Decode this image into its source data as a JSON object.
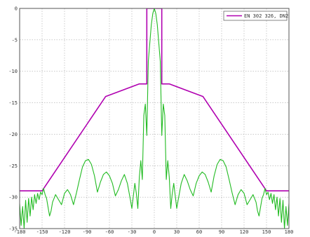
{
  "chart_data": {
    "type": "line",
    "title": "",
    "xlabel": "",
    "ylabel": "",
    "xlim": [
      -180,
      180
    ],
    "ylim": [
      -35,
      0
    ],
    "grid": true,
    "legend_position": "top-right",
    "x_ticks": [
      -180,
      -150,
      -120,
      -90,
      -60,
      -30,
      0,
      30,
      60,
      90,
      120,
      150,
      180
    ],
    "y_ticks": [
      0,
      -5,
      -10,
      -15,
      -20,
      -25,
      -30,
      -35
    ],
    "series": [
      {
        "name": "EN 302 326, DN2",
        "color": "#b000b0",
        "x": [
          -180,
          -150,
          -65,
          -20,
          -10,
          -10,
          10,
          10,
          20,
          65,
          150,
          180
        ],
        "y": [
          -29,
          -29,
          -14,
          -12,
          -12,
          0,
          0,
          -12,
          -12,
          -14,
          -29,
          -29
        ]
      },
      {
        "name": "",
        "color": "#22bb22",
        "x": [
          -180,
          -178,
          -176,
          -174,
          -172,
          -170,
          -168,
          -166,
          -164,
          -162,
          -160,
          -158,
          -156,
          -154,
          -152,
          -150,
          -148,
          -146,
          -144,
          -142,
          -140,
          -138,
          -136,
          -132,
          -128,
          -124,
          -120,
          -116,
          -112,
          -108,
          -104,
          -100,
          -96,
          -92,
          -88,
          -84,
          -80,
          -76,
          -72,
          -68,
          -64,
          -60,
          -56,
          -52,
          -48,
          -44,
          -40,
          -36,
          -32,
          -30,
          -28,
          -26,
          -24,
          -22,
          -20,
          -18,
          -16,
          -14,
          -12,
          -10,
          -8,
          -6,
          -4,
          -2,
          0,
          2,
          4,
          6,
          8,
          10,
          12,
          14,
          16,
          18,
          20,
          22,
          24,
          26,
          28,
          30,
          32,
          36,
          40,
          44,
          48,
          52,
          56,
          60,
          64,
          68,
          72,
          76,
          80,
          84,
          88,
          92,
          96,
          100,
          104,
          108,
          112,
          116,
          120,
          124,
          128,
          132,
          136,
          138,
          140,
          142,
          144,
          146,
          148,
          150,
          152,
          154,
          156,
          158,
          160,
          162,
          164,
          166,
          168,
          170,
          172,
          174,
          176,
          178,
          180
        ],
        "y": [
          -31,
          -34.5,
          -31.5,
          -35,
          -30.5,
          -34,
          -30.2,
          -33,
          -30,
          -32,
          -29.6,
          -31,
          -29.4,
          -30.4,
          -29.2,
          -29.6,
          -28.6,
          -29.6,
          -30.2,
          -31.6,
          -33,
          -32.2,
          -30.8,
          -29.6,
          -30.4,
          -31.2,
          -29.4,
          -28.8,
          -29.6,
          -31.2,
          -29.3,
          -27.2,
          -25.2,
          -24.2,
          -24,
          -24.8,
          -26.6,
          -29.2,
          -27.6,
          -26.4,
          -26,
          -26.6,
          -27.8,
          -29.8,
          -28.8,
          -27.4,
          -26.4,
          -27.8,
          -30.4,
          -31.8,
          -29.8,
          -27.8,
          -29.4,
          -31.8,
          -26.8,
          -24.2,
          -27.2,
          -17,
          -15.2,
          -20.2,
          -8.4,
          -5.5,
          -2.6,
          -0.8,
          0,
          -0.8,
          -2.6,
          -5.5,
          -8.4,
          -20.2,
          -15.2,
          -17,
          -27.2,
          -24.2,
          -26.8,
          -31.8,
          -29.4,
          -27.8,
          -29.8,
          -31.8,
          -30.4,
          -27.8,
          -26.4,
          -27.4,
          -28.8,
          -29.8,
          -27.8,
          -26.6,
          -26,
          -26.4,
          -27.6,
          -29.2,
          -26.6,
          -24.8,
          -24,
          -24.2,
          -25.2,
          -27.2,
          -29.3,
          -31.2,
          -29.6,
          -28.8,
          -29.4,
          -31.2,
          -30.4,
          -29.6,
          -30.8,
          -32.2,
          -33,
          -31.6,
          -30.2,
          -29.6,
          -28.6,
          -29.6,
          -29.2,
          -30.4,
          -29.4,
          -31,
          -29.6,
          -32,
          -30,
          -33,
          -30.2,
          -34,
          -30.5,
          -35,
          -31.5,
          -34.5,
          -31
        ]
      }
    ]
  }
}
